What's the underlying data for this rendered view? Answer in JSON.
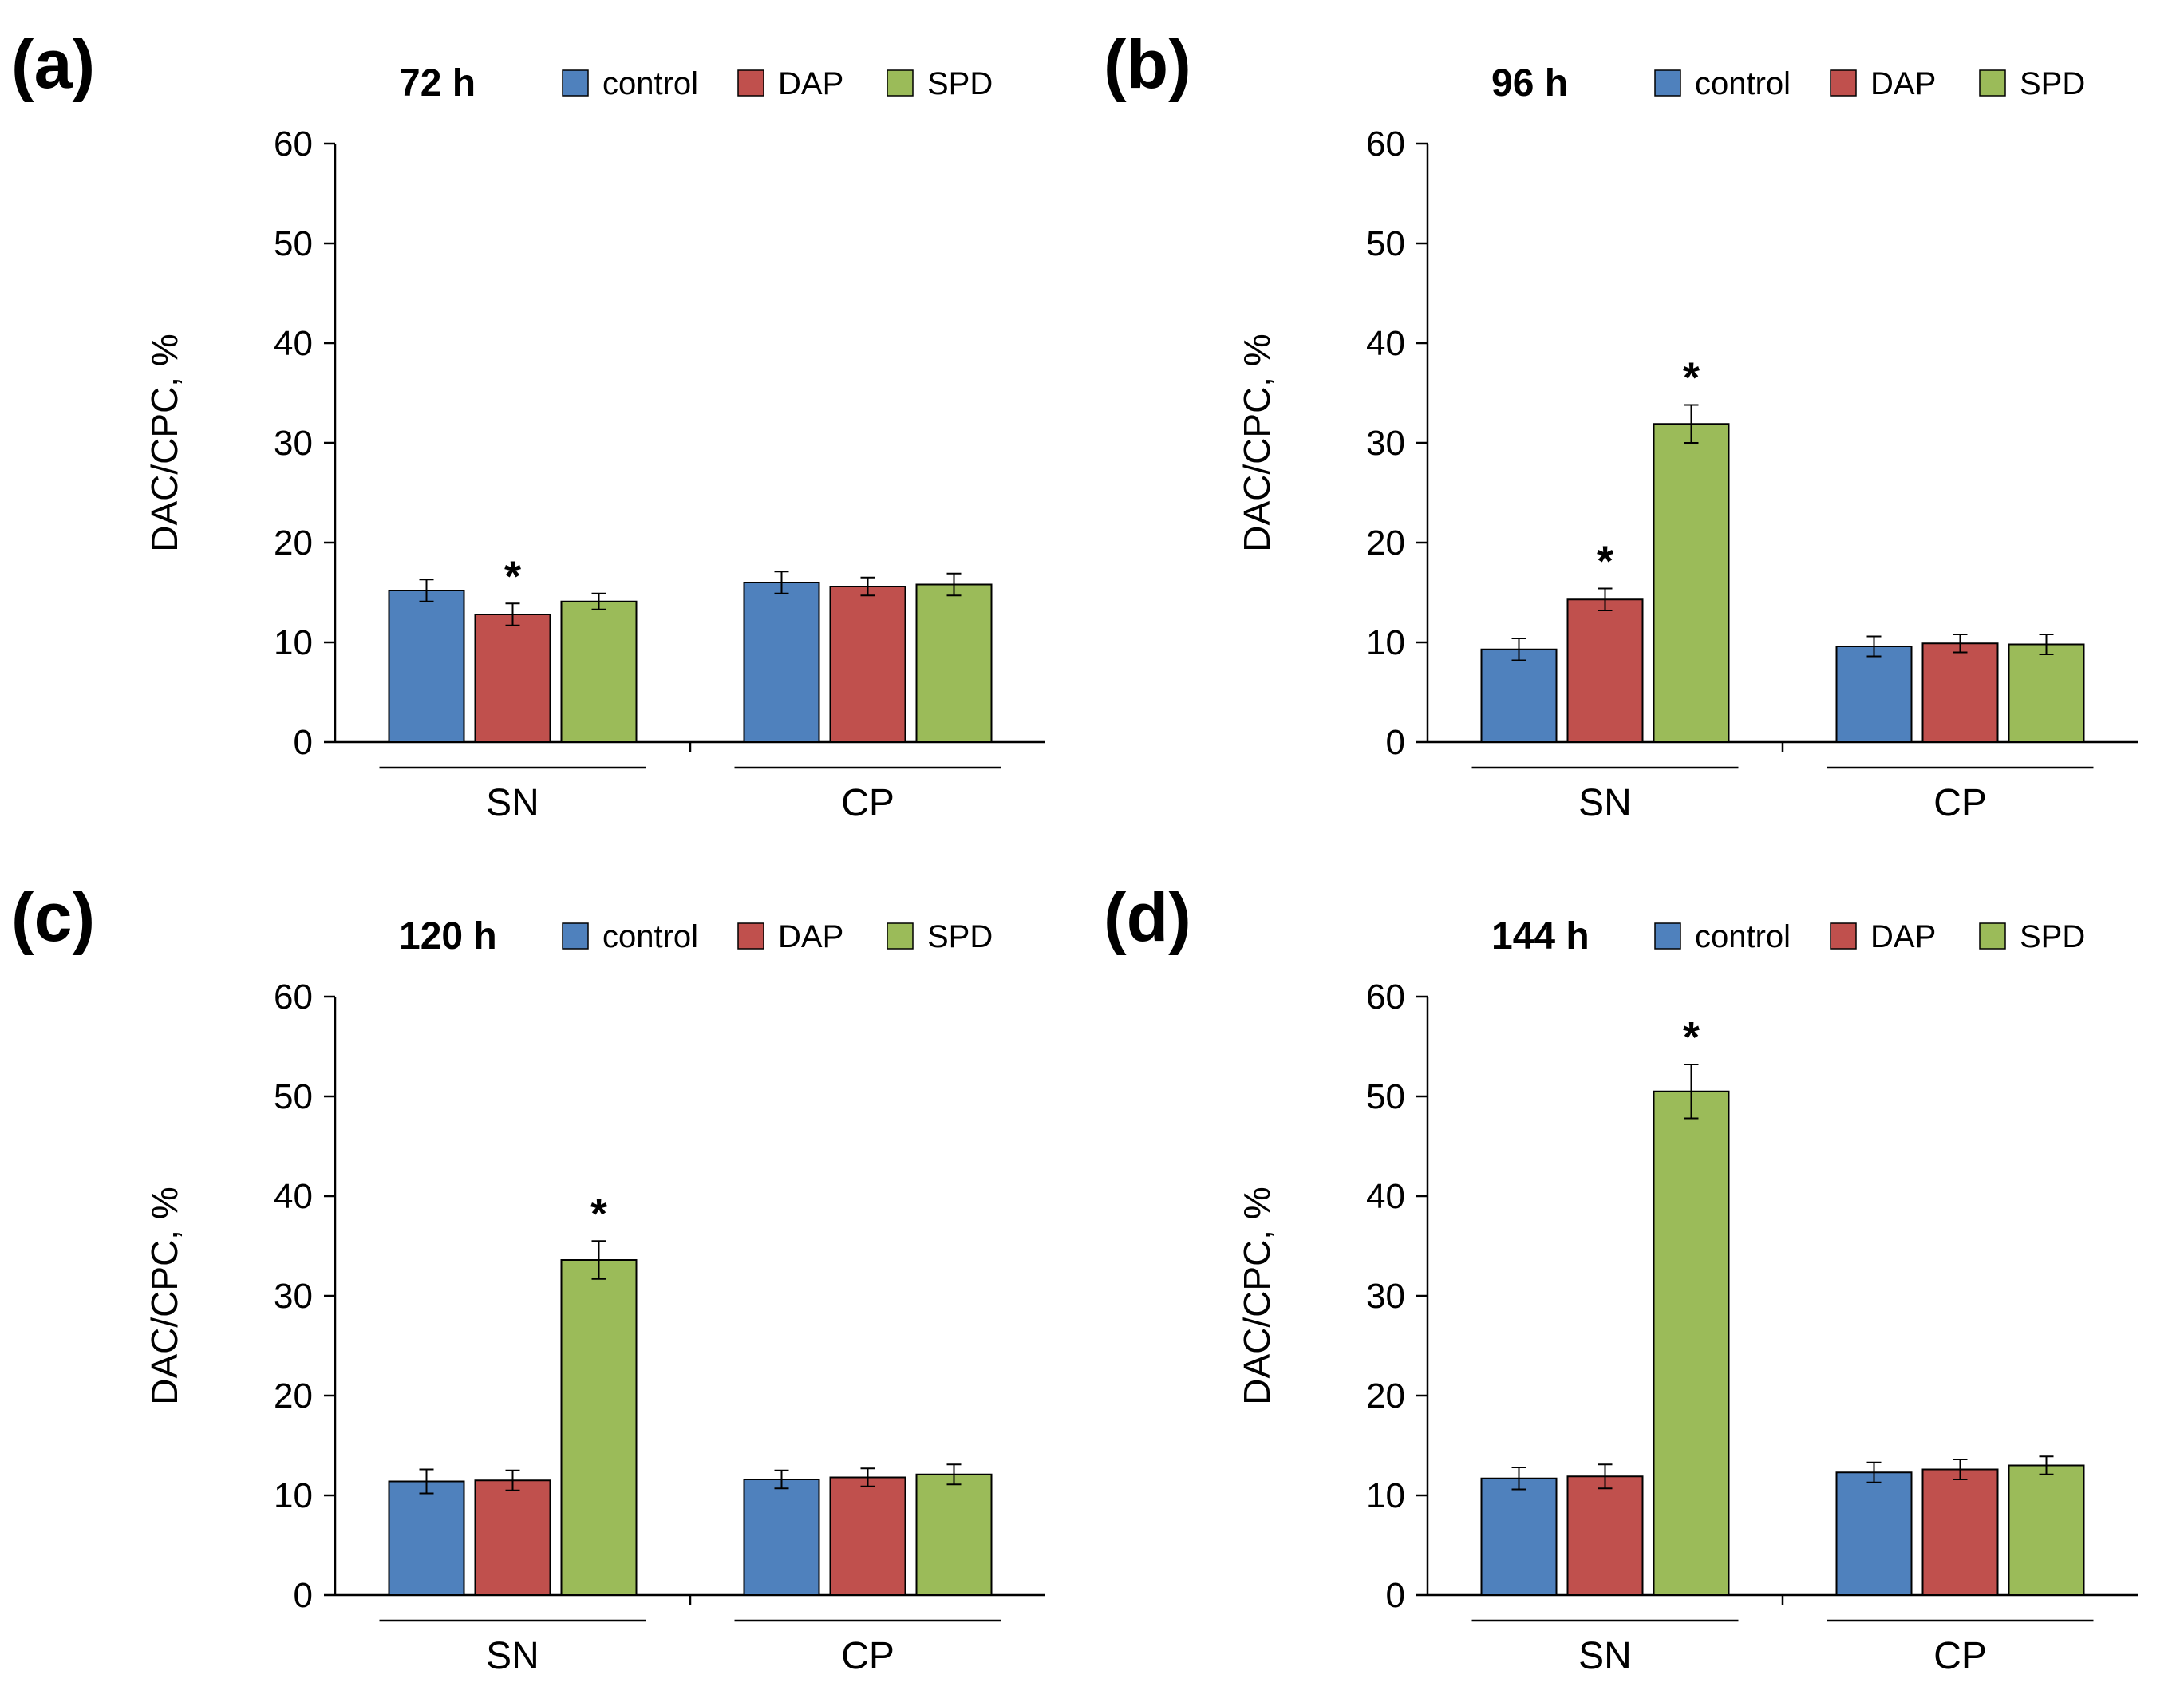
{
  "colors": {
    "control": "#4f81bd",
    "DAP": "#c0504d",
    "SPD": "#9bbb59",
    "stroke": "#000000"
  },
  "chart_data": [
    {
      "type": "bar",
      "panel_label": "(a)",
      "title": "72 h",
      "categories": [
        "SN",
        "CP"
      ],
      "series": [
        {
          "name": "control",
          "values": [
            15.2,
            16.0
          ],
          "errors": [
            1.1,
            1.1
          ]
        },
        {
          "name": "DAP",
          "values": [
            12.8,
            15.6
          ],
          "errors": [
            1.1,
            0.9
          ]
        },
        {
          "name": "SPD",
          "values": [
            14.1,
            15.8
          ],
          "errors": [
            0.8,
            1.1
          ]
        }
      ],
      "annotations": [
        {
          "category": "SN",
          "series": "DAP",
          "text": "*"
        }
      ],
      "ylabel": "DAC/CPC, %",
      "ylim": [
        0,
        60
      ],
      "yticks": [
        0,
        10,
        20,
        30,
        40,
        50,
        60
      ],
      "legend_position": "top"
    },
    {
      "type": "bar",
      "panel_label": "(b)",
      "title": "96 h",
      "categories": [
        "SN",
        "CP"
      ],
      "series": [
        {
          "name": "control",
          "values": [
            9.3,
            9.6
          ],
          "errors": [
            1.1,
            1.0
          ]
        },
        {
          "name": "DAP",
          "values": [
            14.3,
            9.9
          ],
          "errors": [
            1.1,
            0.9
          ]
        },
        {
          "name": "SPD",
          "values": [
            31.9,
            9.8
          ],
          "errors": [
            1.9,
            1.0
          ]
        }
      ],
      "annotations": [
        {
          "category": "SN",
          "series": "DAP",
          "text": "*"
        },
        {
          "category": "SN",
          "series": "SPD",
          "text": "*"
        }
      ],
      "ylabel": "DAC/CPC, %",
      "ylim": [
        0,
        60
      ],
      "yticks": [
        0,
        10,
        20,
        30,
        40,
        50,
        60
      ],
      "legend_position": "top"
    },
    {
      "type": "bar",
      "panel_label": "(c)",
      "title": "120 h",
      "categories": [
        "SN",
        "CP"
      ],
      "series": [
        {
          "name": "control",
          "values": [
            11.4,
            11.6
          ],
          "errors": [
            1.2,
            0.9
          ]
        },
        {
          "name": "DAP",
          "values": [
            11.5,
            11.8
          ],
          "errors": [
            1.0,
            0.9
          ]
        },
        {
          "name": "SPD",
          "values": [
            33.6,
            12.1
          ],
          "errors": [
            1.9,
            1.0
          ]
        }
      ],
      "annotations": [
        {
          "category": "SN",
          "series": "SPD",
          "text": "*"
        }
      ],
      "ylabel": "DAC/CPC, %",
      "ylim": [
        0,
        60
      ],
      "yticks": [
        0,
        10,
        20,
        30,
        40,
        50,
        60
      ],
      "legend_position": "top"
    },
    {
      "type": "bar",
      "panel_label": "(d)",
      "title": "144 h",
      "categories": [
        "SN",
        "CP"
      ],
      "series": [
        {
          "name": "control",
          "values": [
            11.7,
            12.3
          ],
          "errors": [
            1.1,
            1.0
          ]
        },
        {
          "name": "DAP",
          "values": [
            11.9,
            12.6
          ],
          "errors": [
            1.2,
            1.0
          ]
        },
        {
          "name": "SPD",
          "values": [
            50.5,
            13.0
          ],
          "errors": [
            2.7,
            0.9
          ]
        }
      ],
      "annotations": [
        {
          "category": "SN",
          "series": "SPD",
          "text": "*"
        }
      ],
      "ylabel": "DAC/CPC, %",
      "ylim": [
        0,
        60
      ],
      "yticks": [
        0,
        10,
        20,
        30,
        40,
        50,
        60
      ],
      "legend_position": "top"
    }
  ]
}
